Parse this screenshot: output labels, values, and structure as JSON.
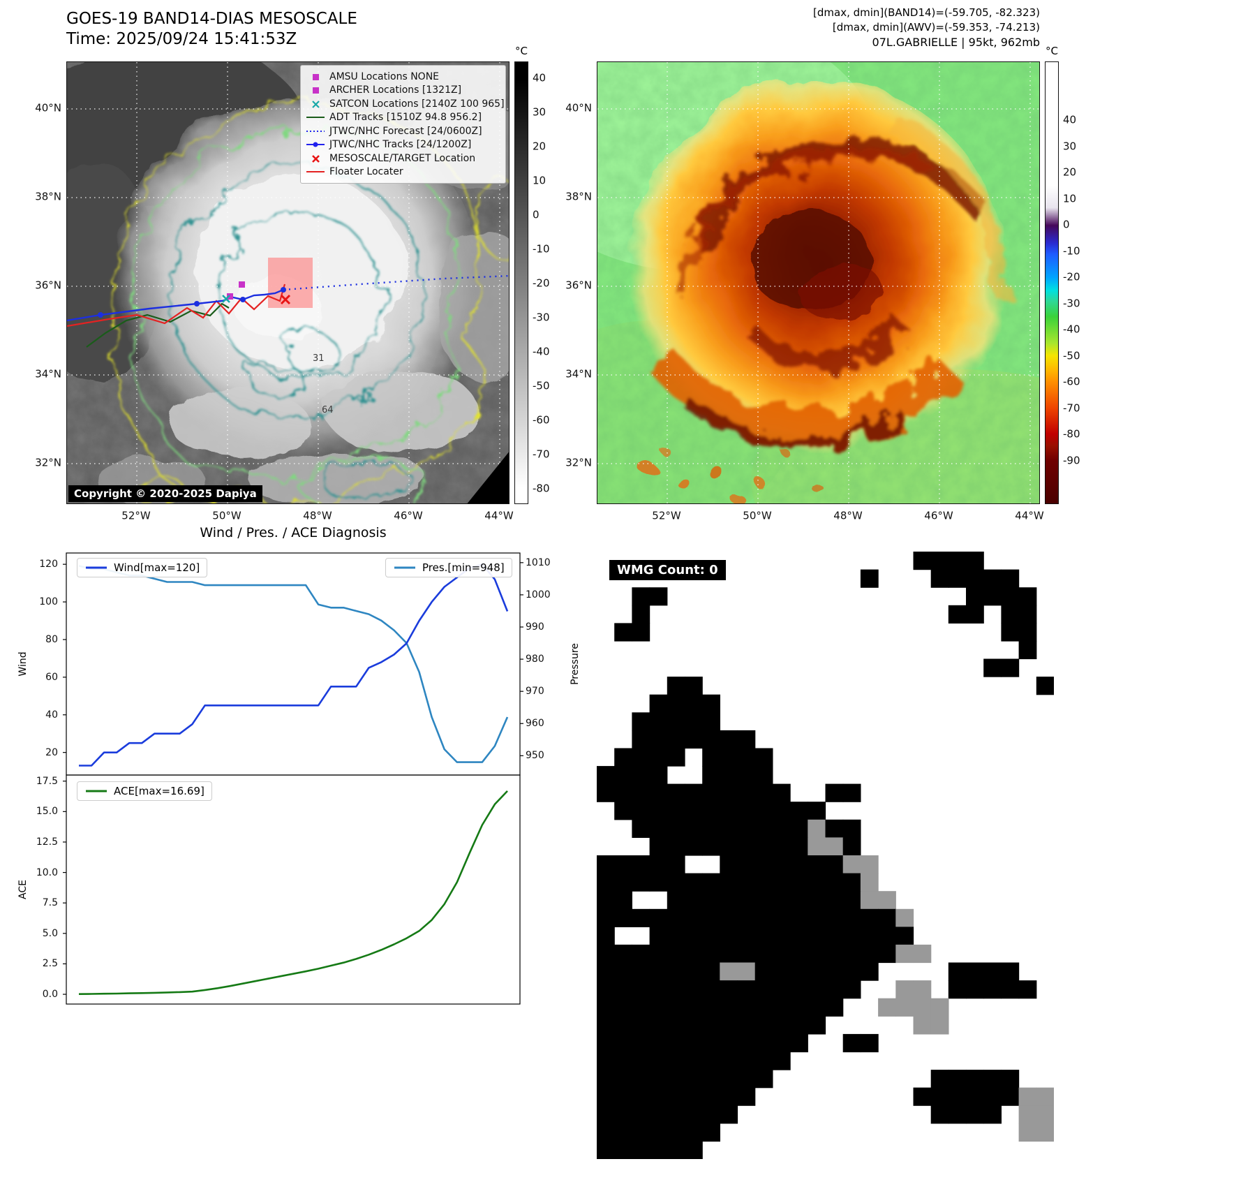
{
  "left_map": {
    "title": "GOES-19 BAND14-DIAS MESOSCALE",
    "time": "Time: 2025/09/24 15:41:53Z",
    "copyright": "Copyright © 2020-2025 Dapiya",
    "contour_labels": [
      "31",
      "64"
    ],
    "colorbar_unit": "°C",
    "colorbar_ticks": [
      "40",
      "30",
      "20",
      "10",
      "0",
      "-10",
      "-20",
      "-30",
      "-40",
      "-50",
      "-60",
      "-70",
      "-80"
    ],
    "lat_ticks": [
      "40°N",
      "38°N",
      "36°N",
      "34°N",
      "32°N"
    ],
    "lon_ticks": [
      "52°W",
      "50°W",
      "48°W",
      "46°W",
      "44°W"
    ],
    "legend": [
      {
        "marker": "square-magenta",
        "label": "AMSU Locations NONE"
      },
      {
        "marker": "square-magenta",
        "label": "ARCHER Locations [1321Z]"
      },
      {
        "marker": "x-teal",
        "label": "SATCON Locations [2140Z 100 965]"
      },
      {
        "marker": "line-darkgreen",
        "label": "ADT Tracks [1510Z 94.8 956.2]"
      },
      {
        "marker": "dotted-blue",
        "label": "JTWC/NHC Forecast [24/0600Z]"
      },
      {
        "marker": "line-dot-blue",
        "label": "JTWC/NHC Tracks [24/1200Z]"
      },
      {
        "marker": "x-red",
        "label": "MESOSCALE/TARGET Location"
      },
      {
        "marker": "line-red",
        "label": "Floater Locater"
      }
    ]
  },
  "right_map": {
    "header1": "[dmax, dmin](BAND14)=(-59.705, -82.323)",
    "header2": "[dmax, dmin](AWV)=(-59.353, -74.213)",
    "header3": "07L.GABRIELLE | 95kt, 962mb",
    "colorbar_unit": "°C",
    "colorbar_ticks": [
      "40",
      "30",
      "20",
      "10",
      "0",
      "-10",
      "-20",
      "-30",
      "-40",
      "-50",
      "-60",
      "-70",
      "-80",
      "-90"
    ],
    "lat_ticks": [
      "40°N",
      "38°N",
      "36°N",
      "34°N",
      "32°N"
    ],
    "lon_ticks": [
      "52°W",
      "50°W",
      "48°W",
      "46°W",
      "44°W"
    ]
  },
  "diagnosis": {
    "title": "Wind / Pres. / ACE Diagnosis"
  },
  "chart_data": [
    {
      "type": "line",
      "title": "Wind / Pres. / ACE Diagnosis",
      "grid": false,
      "legend_position": "wind: top-left, pressure: top-right",
      "series": [
        {
          "name": "Wind[max=120]",
          "axis": "left",
          "color": "#1a3cdc",
          "values": [
            13,
            13,
            20,
            20,
            25,
            25,
            30,
            30,
            30,
            35,
            45,
            45,
            45,
            45,
            45,
            45,
            45,
            45,
            45,
            45,
            55,
            55,
            55,
            65,
            68,
            72,
            78,
            90,
            100,
            108,
            113,
            118,
            120,
            112,
            95
          ]
        },
        {
          "name": "Pres.[min=948]",
          "axis": "right",
          "color": "#2e86c1",
          "values": [
            1009,
            1008,
            1008,
            1007,
            1006,
            1006,
            1005,
            1004,
            1004,
            1004,
            1003,
            1003,
            1003,
            1003,
            1003,
            1003,
            1003,
            1003,
            1003,
            997,
            996,
            996,
            995,
            994,
            992,
            989,
            985,
            976,
            962,
            952,
            948,
            948,
            948,
            953,
            962
          ]
        }
      ],
      "left_axis": {
        "label": "Wind",
        "ticks": [
          "120",
          "100",
          "80",
          "60",
          "40",
          "20"
        ],
        "ylim": [
          8,
          126
        ]
      },
      "right_axis": {
        "label": "Pressure",
        "ticks": [
          "1010",
          "1000",
          "990",
          "980",
          "970",
          "960",
          "950"
        ],
        "ylim": [
          944,
          1013
        ]
      }
    },
    {
      "type": "line",
      "grid": false,
      "legend_position": "top-left",
      "series": [
        {
          "name": "ACE[max=16.69]",
          "axis": "left",
          "color": "#157a15",
          "values": [
            0.02,
            0.03,
            0.05,
            0.06,
            0.08,
            0.1,
            0.12,
            0.15,
            0.18,
            0.22,
            0.35,
            0.5,
            0.68,
            0.88,
            1.08,
            1.28,
            1.48,
            1.68,
            1.88,
            2.1,
            2.35,
            2.6,
            2.9,
            3.25,
            3.65,
            4.1,
            4.6,
            5.2,
            6.1,
            7.4,
            9.2,
            11.6,
            13.9,
            15.6,
            16.69
          ]
        }
      ],
      "left_axis": {
        "label": "ACE",
        "ticks": [
          "17.5",
          "15.0",
          "12.5",
          "10.0",
          "7.5",
          "5.0",
          "2.5",
          "0.0"
        ],
        "ylim": [
          -0.8,
          18
        ]
      }
    }
  ],
  "wmg": {
    "label": "WMG Count: 0",
    "legend_colors": {
      "black": "#000000",
      "gray": "#999999",
      "white": "#ffffff"
    },
    "grid": [
      "..................BBBB....",
      "...............B...BBBBB..",
      "..BB.................BBBB.",
      "..B.................BB.BB.",
      ".BB....................BB.",
      "........................B.",
      "......................BB..",
      "....BB...................B",
      "...BBBB...................",
      "..BBBBB...................",
      "..BBBBBBB.................",
      ".BBBB.BBBB................",
      "BBBB..BBBB................",
      "BBBBBBBBBBB..BB...........",
      ".BBBBBBBBBBBB.............",
      "..BBBBBBBBBBGBB...........",
      "...BBBBBBBBBGGB...........",
      "BBBBB..BBBBBBBGG..........",
      "BBBBBBBBBBBBBBBG..........",
      "BB..BBBBBBBBBBBGG.........",
      "BBBBBBBBBBBBBBBBBG........",
      "B..BBBBBBBBBBBBBBB........",
      "BBBBBBBBBBBBBBBBBGG.......",
      "BBBBBBBGGBBBBBBB....BBBB..",
      "BBBBBBBBBBBBBBB..GG.BBBBB.",
      "BBBBBBBBBBBBBB..GGGG......",
      "BBBBBBBBBBBBB.....GG......",
      "BBBBBBBBBBBB..BB..........",
      "BBBBBBBBBBB...............",
      "BBBBBBBBBB.........BBBBB..",
      "BBBBBBBBB.........BBBBBBGG",
      "BBBBBBBB...........BBBB.GG",
      "BBBBBBB.................GG",
      "BBBBBB...................."
    ]
  }
}
